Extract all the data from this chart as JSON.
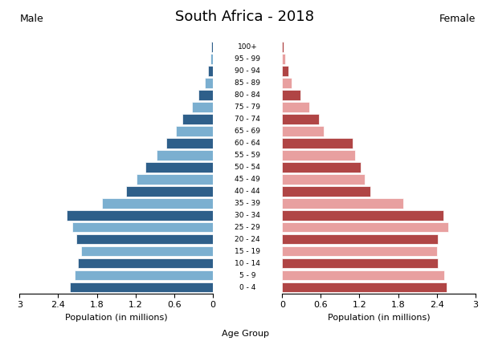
{
  "title": "South Africa - 2018",
  "age_groups": [
    "0 - 4",
    "5 - 9",
    "10 - 14",
    "15 - 19",
    "20 - 24",
    "25 - 29",
    "30 - 34",
    "35 - 39",
    "40 - 44",
    "45 - 49",
    "50 - 54",
    "55 - 59",
    "60 - 64",
    "65 - 69",
    "70 - 74",
    "75 - 79",
    "80 - 84",
    "85 - 89",
    "90 - 94",
    "95 - 99",
    "100+"
  ],
  "male": [
    2.22,
    2.15,
    2.1,
    2.05,
    2.12,
    2.18,
    2.27,
    1.72,
    1.35,
    1.18,
    1.05,
    0.87,
    0.72,
    0.57,
    0.47,
    0.32,
    0.22,
    0.12,
    0.07,
    0.04,
    0.02
  ],
  "female": [
    2.55,
    2.52,
    2.42,
    2.4,
    2.42,
    2.58,
    2.5,
    1.88,
    1.37,
    1.28,
    1.22,
    1.13,
    1.1,
    0.65,
    0.57,
    0.42,
    0.28,
    0.15,
    0.09,
    0.05,
    0.02
  ],
  "male_dark_color": "#2e5f8a",
  "male_light_color": "#7bafd0",
  "female_dark_color": "#b04545",
  "female_light_color": "#e8a0a0",
  "xlim": 3.0,
  "xlabel": "Population (in millions)",
  "age_label": "Age Group",
  "ylabel_right": "Population (in millions)",
  "male_label": "Male",
  "female_label": "Female",
  "background_color": "#ffffff",
  "xticks": [
    0,
    0.6,
    1.2,
    1.8,
    2.4,
    3.0
  ],
  "xticklabels": [
    "0",
    "0.6",
    "1.2",
    "1.8",
    "2.4",
    "3"
  ]
}
